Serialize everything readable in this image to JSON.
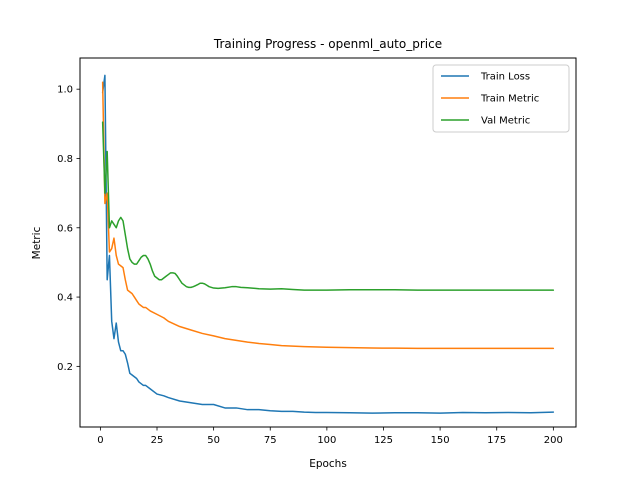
{
  "chart_data": {
    "type": "line",
    "title": "Training Progress - openml_auto_price",
    "xlabel": "Epochs",
    "ylabel": "Metric",
    "xlim": [
      -9,
      210
    ],
    "ylim": [
      0.025,
      1.09
    ],
    "xticks": [
      0,
      25,
      50,
      75,
      100,
      125,
      150,
      175,
      200
    ],
    "yticks": [
      0.2,
      0.4,
      0.6,
      0.8,
      1.0
    ],
    "ytick_labels": [
      "0.2",
      "0.4",
      "0.6",
      "0.8",
      "1.0"
    ],
    "grid": false,
    "legend_position": "top-right",
    "series": [
      {
        "name": "Train Loss",
        "color": "#1f77b4",
        "x": [
          1,
          2,
          3,
          4,
          5,
          6,
          7,
          8,
          9,
          10,
          11,
          12,
          13,
          14,
          15,
          16,
          17,
          18,
          19,
          20,
          22,
          25,
          28,
          30,
          35,
          40,
          45,
          50,
          55,
          60,
          65,
          70,
          75,
          80,
          85,
          90,
          95,
          100,
          110,
          120,
          130,
          140,
          150,
          160,
          170,
          180,
          190,
          200
        ],
        "y": [
          0.99,
          1.04,
          0.45,
          0.52,
          0.33,
          0.28,
          0.325,
          0.27,
          0.245,
          0.245,
          0.235,
          0.21,
          0.18,
          0.175,
          0.17,
          0.165,
          0.155,
          0.15,
          0.145,
          0.145,
          0.135,
          0.12,
          0.115,
          0.11,
          0.1,
          0.095,
          0.09,
          0.09,
          0.08,
          0.08,
          0.075,
          0.075,
          0.072,
          0.07,
          0.07,
          0.068,
          0.067,
          0.067,
          0.066,
          0.065,
          0.066,
          0.066,
          0.065,
          0.067,
          0.066,
          0.067,
          0.066,
          0.068
        ]
      },
      {
        "name": "Train Metric",
        "color": "#ff7f0e",
        "x": [
          1,
          2,
          3,
          4,
          5,
          6,
          7,
          8,
          9,
          10,
          11,
          12,
          13,
          14,
          15,
          16,
          17,
          18,
          19,
          20,
          22,
          25,
          28,
          30,
          35,
          40,
          45,
          50,
          55,
          60,
          65,
          70,
          75,
          80,
          90,
          100,
          110,
          120,
          130,
          140,
          150,
          160,
          170,
          180,
          190,
          200
        ],
        "y": [
          1.02,
          0.67,
          0.7,
          0.53,
          0.54,
          0.57,
          0.52,
          0.495,
          0.49,
          0.485,
          0.45,
          0.42,
          0.415,
          0.41,
          0.4,
          0.39,
          0.38,
          0.375,
          0.37,
          0.37,
          0.36,
          0.35,
          0.34,
          0.33,
          0.315,
          0.305,
          0.295,
          0.288,
          0.28,
          0.275,
          0.27,
          0.266,
          0.263,
          0.26,
          0.257,
          0.255,
          0.254,
          0.253,
          0.2525,
          0.252,
          0.252,
          0.252,
          0.252,
          0.252,
          0.252,
          0.252
        ]
      },
      {
        "name": "Val Metric",
        "color": "#2ca02c",
        "x": [
          1,
          2,
          3,
          4,
          5,
          6,
          7,
          8,
          9,
          10,
          11,
          12,
          13,
          14,
          15,
          16,
          17,
          18,
          19,
          20,
          21,
          22,
          23,
          24,
          25,
          26,
          27,
          28,
          29,
          30,
          31,
          32,
          33,
          34,
          35,
          36,
          37,
          38,
          39,
          40,
          41,
          42,
          43,
          44,
          45,
          46,
          47,
          48,
          50,
          52,
          55,
          58,
          60,
          62,
          65,
          70,
          75,
          80,
          85,
          90,
          95,
          100,
          110,
          120,
          130,
          140,
          150,
          160,
          170,
          180,
          190,
          200
        ],
        "y": [
          0.905,
          0.7,
          0.82,
          0.6,
          0.62,
          0.61,
          0.6,
          0.62,
          0.63,
          0.62,
          0.58,
          0.54,
          0.51,
          0.5,
          0.495,
          0.495,
          0.505,
          0.515,
          0.52,
          0.52,
          0.51,
          0.495,
          0.475,
          0.46,
          0.455,
          0.45,
          0.45,
          0.455,
          0.46,
          0.465,
          0.47,
          0.47,
          0.468,
          0.46,
          0.45,
          0.44,
          0.435,
          0.43,
          0.428,
          0.428,
          0.43,
          0.433,
          0.436,
          0.44,
          0.44,
          0.438,
          0.434,
          0.43,
          0.426,
          0.425,
          0.427,
          0.43,
          0.43,
          0.428,
          0.427,
          0.424,
          0.423,
          0.424,
          0.422,
          0.42,
          0.42,
          0.42,
          0.421,
          0.421,
          0.421,
          0.42,
          0.42,
          0.42,
          0.42,
          0.42,
          0.42,
          0.42
        ]
      }
    ]
  }
}
